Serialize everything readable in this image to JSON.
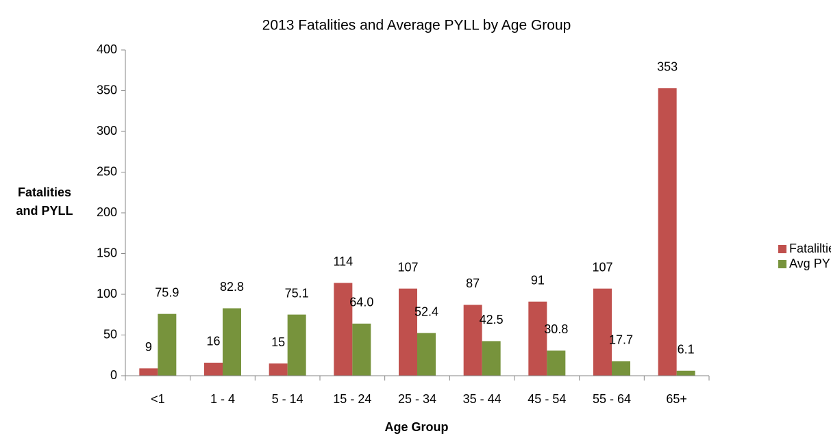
{
  "chart_data": {
    "type": "bar",
    "title": "2013 Fatalities and Average PYLL by Age Group",
    "xlabel": "Age Group",
    "ylabel": "Fatalities and PYLL",
    "categories": [
      "<1",
      "1 - 4",
      "5 - 14",
      "15 - 24",
      "25 - 34",
      "35 - 44",
      "45 - 54",
      "55 - 64",
      "65+"
    ],
    "series": [
      {
        "name": "Fatalilties",
        "color": "#c0504d",
        "values": [
          9,
          16,
          15,
          114,
          107,
          87,
          91,
          107,
          353
        ]
      },
      {
        "name": "Avg PYLL",
        "color": "#77933c",
        "values": [
          75.9,
          82.8,
          75.1,
          64.0,
          52.4,
          42.5,
          30.8,
          17.7,
          6.1
        ],
        "value_labels": [
          "75.9",
          "82.8",
          "75.1",
          "64.0",
          "52.4",
          "42.5",
          "30.8",
          "17.7",
          "6.1"
        ]
      }
    ],
    "ylim": [
      0,
      400
    ],
    "yticks": [
      0,
      50,
      100,
      150,
      200,
      250,
      300,
      350,
      400
    ],
    "grid": false,
    "legend": "right"
  }
}
